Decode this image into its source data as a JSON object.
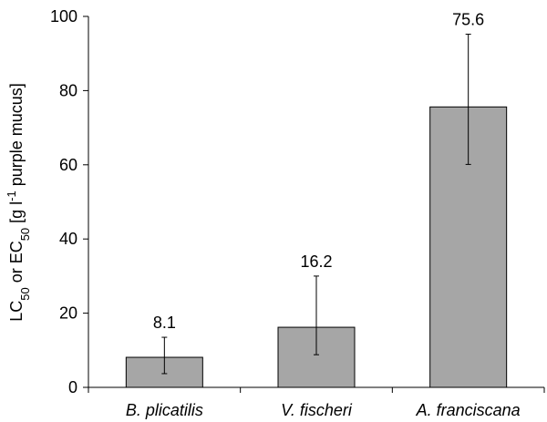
{
  "chart_data": {
    "type": "bar",
    "categories": [
      "B. plicatilis",
      "V. fischeri",
      "A. franciscana"
    ],
    "values": [
      8.1,
      16.2,
      75.6
    ],
    "error_low": [
      3.7,
      8.8,
      60.1
    ],
    "error_high": [
      13.5,
      30.0,
      95.2
    ],
    "data_labels": [
      "8.1",
      "16.2",
      "75.6"
    ],
    "ylabel": {
      "prefix1": "LC",
      "sub1": "50",
      "middle": " or EC",
      "sub2": "50",
      "middle2": " [g l",
      "sup": "-1",
      "suffix": " purple mucus]"
    },
    "ylim": [
      0,
      100
    ],
    "yticks": [
      0,
      20,
      40,
      60,
      80,
      100
    ],
    "grid": false,
    "colors": {
      "bar": "#a6a6a6",
      "bar_stroke": "#000000",
      "axis": "#000000"
    }
  }
}
